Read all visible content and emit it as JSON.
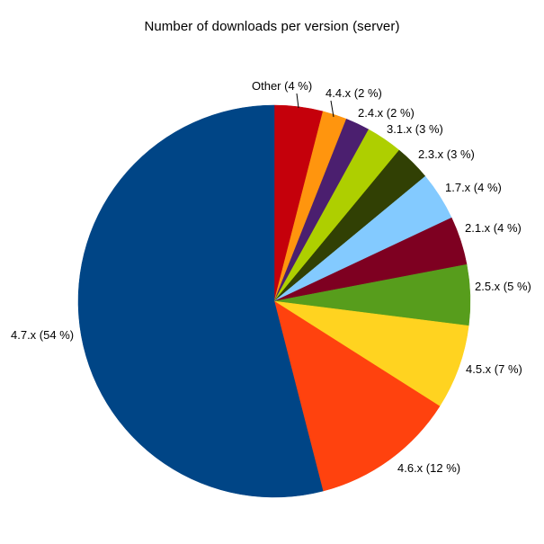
{
  "chart_data": {
    "type": "pie",
    "title": "Number of downloads per version (server)",
    "unit": "%",
    "direction": "clockwise",
    "start_angle": "12-oclock",
    "legend_position": "none",
    "background_color": "#FFFFFF",
    "label_color": "#000000",
    "slices": [
      {
        "name": "Other",
        "value": 4,
        "label": "Other (4 %)",
        "color": "#C5000B"
      },
      {
        "name": "4.4.x",
        "value": 2,
        "label": "4.4.x (2 %)",
        "color": "#FF950E"
      },
      {
        "name": "2.4.x",
        "value": 2,
        "label": "2.4.x (2 %)",
        "color": "#4B1F6F"
      },
      {
        "name": "3.1.x",
        "value": 3,
        "label": "3.1.x (3 %)",
        "color": "#AECF00"
      },
      {
        "name": "2.3.x",
        "value": 3,
        "label": "2.3.x (3 %)",
        "color": "#314004"
      },
      {
        "name": "1.7.x",
        "value": 4,
        "label": "1.7.x (4 %)",
        "color": "#83CAFF"
      },
      {
        "name": "2.1.x",
        "value": 4,
        "label": "2.1.x (4 %)",
        "color": "#7E0021"
      },
      {
        "name": "2.5.x",
        "value": 5,
        "label": "2.5.x (5 %)",
        "color": "#579D1C"
      },
      {
        "name": "4.5.x",
        "value": 7,
        "label": "4.5.x (7 %)",
        "color": "#FFD320"
      },
      {
        "name": "4.6.x",
        "value": 12,
        "label": "4.6.x (12 %)",
        "color": "#FF420E"
      },
      {
        "name": "4.7.x",
        "value": 54,
        "label": "4.7.x (54 %)",
        "color": "#004586"
      }
    ]
  }
}
